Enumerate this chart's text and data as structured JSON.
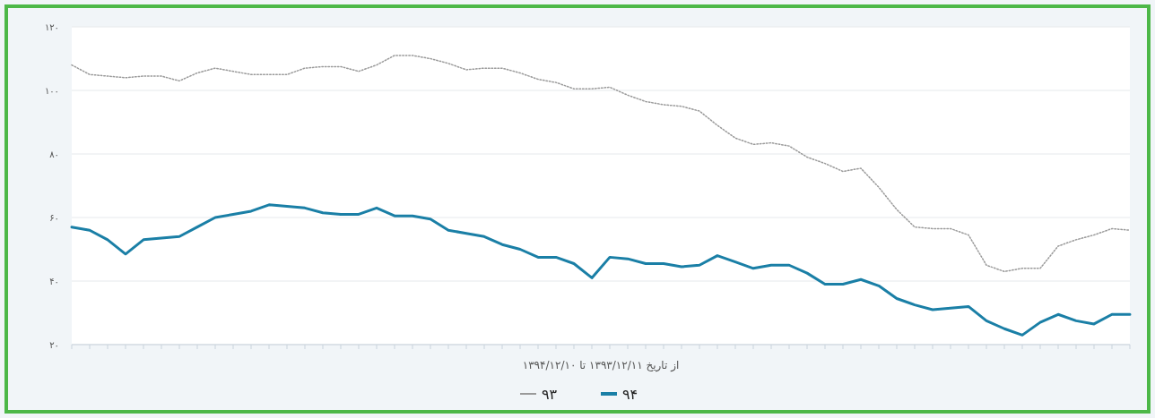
{
  "chart_data": {
    "type": "line",
    "xlabel": "از تاریخ ۱۳۹۳/۱۲/۱۱ تا ۱۳۹۴/۱۲/۱۰",
    "categories": [
      null,
      null,
      null,
      null,
      null,
      null,
      null,
      null,
      null,
      null,
      null,
      null,
      null,
      null,
      null,
      null,
      null,
      null,
      null,
      null,
      null,
      null,
      null,
      null,
      null,
      null,
      null,
      null,
      null,
      null,
      null,
      null,
      null,
      null,
      null,
      null,
      null,
      null,
      null,
      null,
      null,
      null,
      null,
      null,
      null,
      null,
      null,
      null,
      null,
      null,
      null,
      null,
      null,
      null,
      null,
      null,
      null,
      null,
      null,
      null
    ],
    "series": [
      {
        "name": "۹۳",
        "color": "#9a9a9a",
        "line_style": "dotted",
        "values": [
          108,
          105,
          104.5,
          104,
          104.5,
          104.5,
          103,
          105.5,
          107,
          106,
          105,
          105,
          105,
          107,
          107.5,
          107.5,
          106,
          108,
          111,
          111,
          110,
          108.5,
          106.5,
          107,
          107,
          105.5,
          103.5,
          102.5,
          100.5,
          100.5,
          101,
          98.5,
          96.5,
          95.5,
          95,
          93.5,
          89,
          85,
          83,
          83.5,
          82.5,
          79,
          77,
          74.5,
          75.5,
          69.5,
          62.5,
          57,
          56.5,
          56.5,
          54.5,
          45,
          43,
          44,
          44,
          51,
          53,
          54.5,
          56.5,
          56
        ]
      },
      {
        "name": "۹۴",
        "color": "#1a7fa6",
        "line_style": "solid",
        "values": [
          57,
          56,
          53,
          48.5,
          53,
          53.5,
          54,
          57,
          60,
          61,
          62,
          64,
          63.5,
          63,
          61.5,
          61,
          61,
          63,
          60.5,
          60.5,
          59.5,
          56,
          55,
          54,
          51.5,
          50,
          47.5,
          47.5,
          45.5,
          41,
          47.5,
          47,
          45.5,
          45.5,
          44.5,
          45,
          48,
          46,
          44,
          45,
          45,
          42.5,
          39,
          39,
          40.5,
          38.5,
          34.5,
          32.5,
          31,
          31.5,
          32,
          27.5,
          25,
          23,
          27,
          29.5,
          27.5,
          26.5,
          29.5,
          29.5
        ]
      }
    ],
    "ylim": [
      20,
      120
    ],
    "yticks": [
      {
        "value": 20,
        "label": "۲۰"
      },
      {
        "value": 40,
        "label": "۴۰"
      },
      {
        "value": 60,
        "label": "۶۰"
      },
      {
        "value": 80,
        "label": "۸۰"
      },
      {
        "value": 100,
        "label": "۱۰۰"
      },
      {
        "value": 120,
        "label": "۱۲۰"
      }
    ],
    "grid": "y",
    "legend": "bottom"
  }
}
